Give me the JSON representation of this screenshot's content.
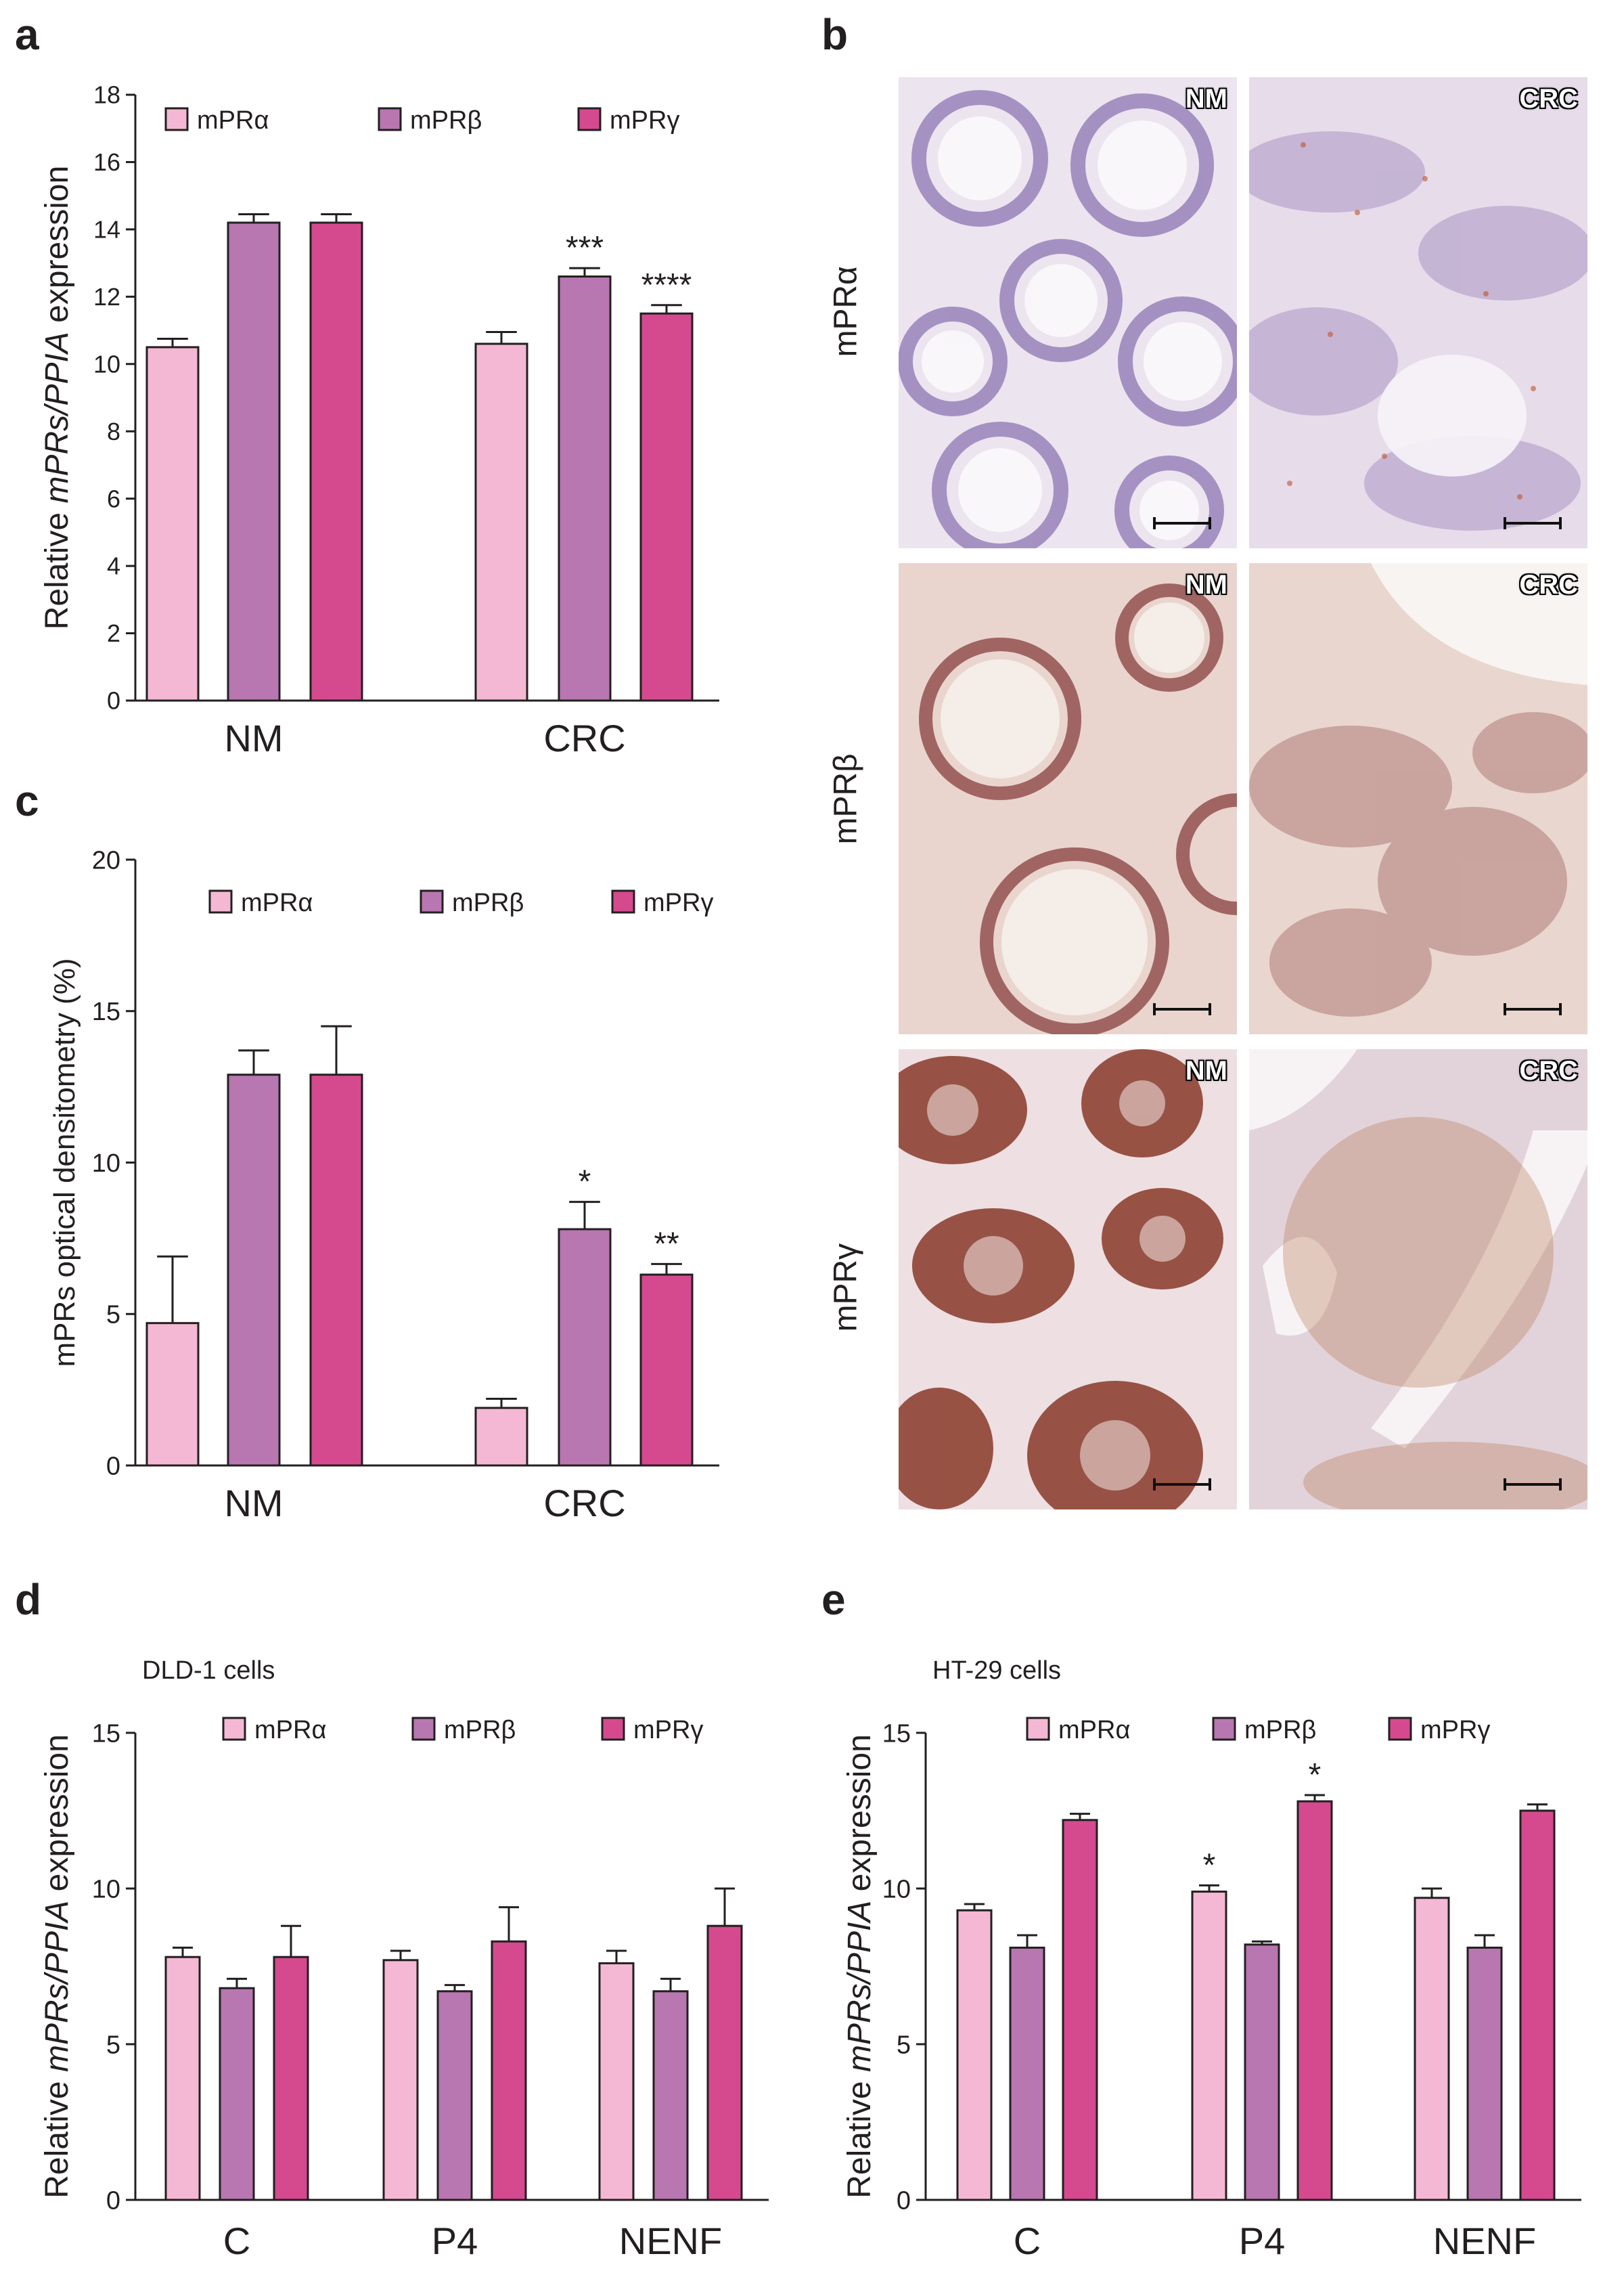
{
  "panel_letters": {
    "a": "a",
    "b": "b",
    "c": "c",
    "d": "d",
    "e": "e"
  },
  "colors": {
    "mPRa": "#f5b8d4",
    "mPRb": "#b877b1",
    "mPRg": "#d54a8e",
    "axis": "#231f20"
  },
  "legend_labels": [
    "mPRα",
    "mPRβ",
    "mPRγ"
  ],
  "micrographs": {
    "row_labels": [
      "mPRα",
      "mPRβ",
      "mPRγ"
    ],
    "tags": {
      "nm": "NM",
      "crc": "CRC"
    },
    "stain_colors": {
      "a_nm": "#ece4ef",
      "a_crc": "#e6dcea",
      "b_nm": "#e9d5ce",
      "b_crc": "#e9d6cf",
      "g_nm": "#eedfe2",
      "g_crc": "#e2d3da"
    }
  },
  "chart_data": [
    {
      "id": "a",
      "type": "bar",
      "title": "",
      "ylabel_parts": [
        "Relative ",
        "mPRs/PPIA",
        " expression"
      ],
      "categories": [
        "NM",
        "CRC"
      ],
      "ylim": [
        0,
        18
      ],
      "yticks": [
        0,
        2,
        4,
        6,
        8,
        10,
        12,
        14,
        16,
        18
      ],
      "series": [
        {
          "name": "mPRα",
          "values": [
            10.5,
            10.6
          ],
          "errors": [
            0.25,
            0.35
          ],
          "sig": [
            "",
            ""
          ]
        },
        {
          "name": "mPRβ",
          "values": [
            14.2,
            12.6
          ],
          "errors": [
            0.25,
            0.25
          ],
          "sig": [
            "",
            "***"
          ]
        },
        {
          "name": "mPRγ",
          "values": [
            14.2,
            11.5
          ],
          "errors": [
            0.25,
            0.25
          ],
          "sig": [
            "",
            "****"
          ]
        }
      ]
    },
    {
      "id": "c",
      "type": "bar",
      "title": "",
      "ylabel_parts": [
        "mPRs optical densitometry (%)",
        "",
        ""
      ],
      "categories": [
        "NM",
        "CRC"
      ],
      "ylim": [
        0,
        20
      ],
      "yticks": [
        0,
        5,
        10,
        15,
        20
      ],
      "series": [
        {
          "name": "mPRα",
          "values": [
            4.7,
            1.9
          ],
          "errors": [
            2.2,
            0.3
          ],
          "sig": [
            "",
            ""
          ]
        },
        {
          "name": "mPRβ",
          "values": [
            12.9,
            7.8
          ],
          "errors": [
            0.8,
            0.9
          ],
          "sig": [
            "",
            "*"
          ]
        },
        {
          "name": "mPRγ",
          "values": [
            12.9,
            6.3
          ],
          "errors": [
            1.6,
            0.35
          ],
          "sig": [
            "",
            "**"
          ]
        }
      ]
    },
    {
      "id": "d",
      "type": "bar",
      "title": "DLD-1 cells",
      "ylabel_parts": [
        "Relative ",
        "mPRs/PPIA",
        " expression"
      ],
      "categories": [
        "C",
        "P4",
        "NENF"
      ],
      "ylim": [
        0,
        15
      ],
      "yticks": [
        0,
        5,
        10,
        15
      ],
      "series": [
        {
          "name": "mPRα",
          "values": [
            7.8,
            7.7,
            7.6
          ],
          "errors": [
            0.3,
            0.3,
            0.4
          ],
          "sig": [
            "",
            "",
            ""
          ]
        },
        {
          "name": "mPRβ",
          "values": [
            6.8,
            6.7,
            6.7
          ],
          "errors": [
            0.3,
            0.2,
            0.4
          ],
          "sig": [
            "",
            "",
            ""
          ]
        },
        {
          "name": "mPRγ",
          "values": [
            7.8,
            8.3,
            8.8
          ],
          "errors": [
            1.0,
            1.1,
            1.2
          ],
          "sig": [
            "",
            "",
            ""
          ]
        }
      ]
    },
    {
      "id": "e",
      "type": "bar",
      "title": "HT-29 cells",
      "ylabel_parts": [
        "Relative ",
        "mPRs/PPIA",
        " expression"
      ],
      "categories": [
        "C",
        "P4",
        "NENF"
      ],
      "ylim": [
        0,
        15
      ],
      "yticks": [
        0,
        5,
        10,
        15
      ],
      "series": [
        {
          "name": "mPRα",
          "values": [
            9.3,
            9.9,
            9.7
          ],
          "errors": [
            0.2,
            0.2,
            0.3
          ],
          "sig": [
            "",
            "*",
            ""
          ]
        },
        {
          "name": "mPRβ",
          "values": [
            8.1,
            8.2,
            8.1
          ],
          "errors": [
            0.4,
            0.1,
            0.4
          ],
          "sig": [
            "",
            "",
            ""
          ]
        },
        {
          "name": "mPRγ",
          "values": [
            12.2,
            12.8,
            12.5
          ],
          "errors": [
            0.2,
            0.2,
            0.2
          ],
          "sig": [
            "",
            "*",
            ""
          ]
        }
      ]
    }
  ]
}
